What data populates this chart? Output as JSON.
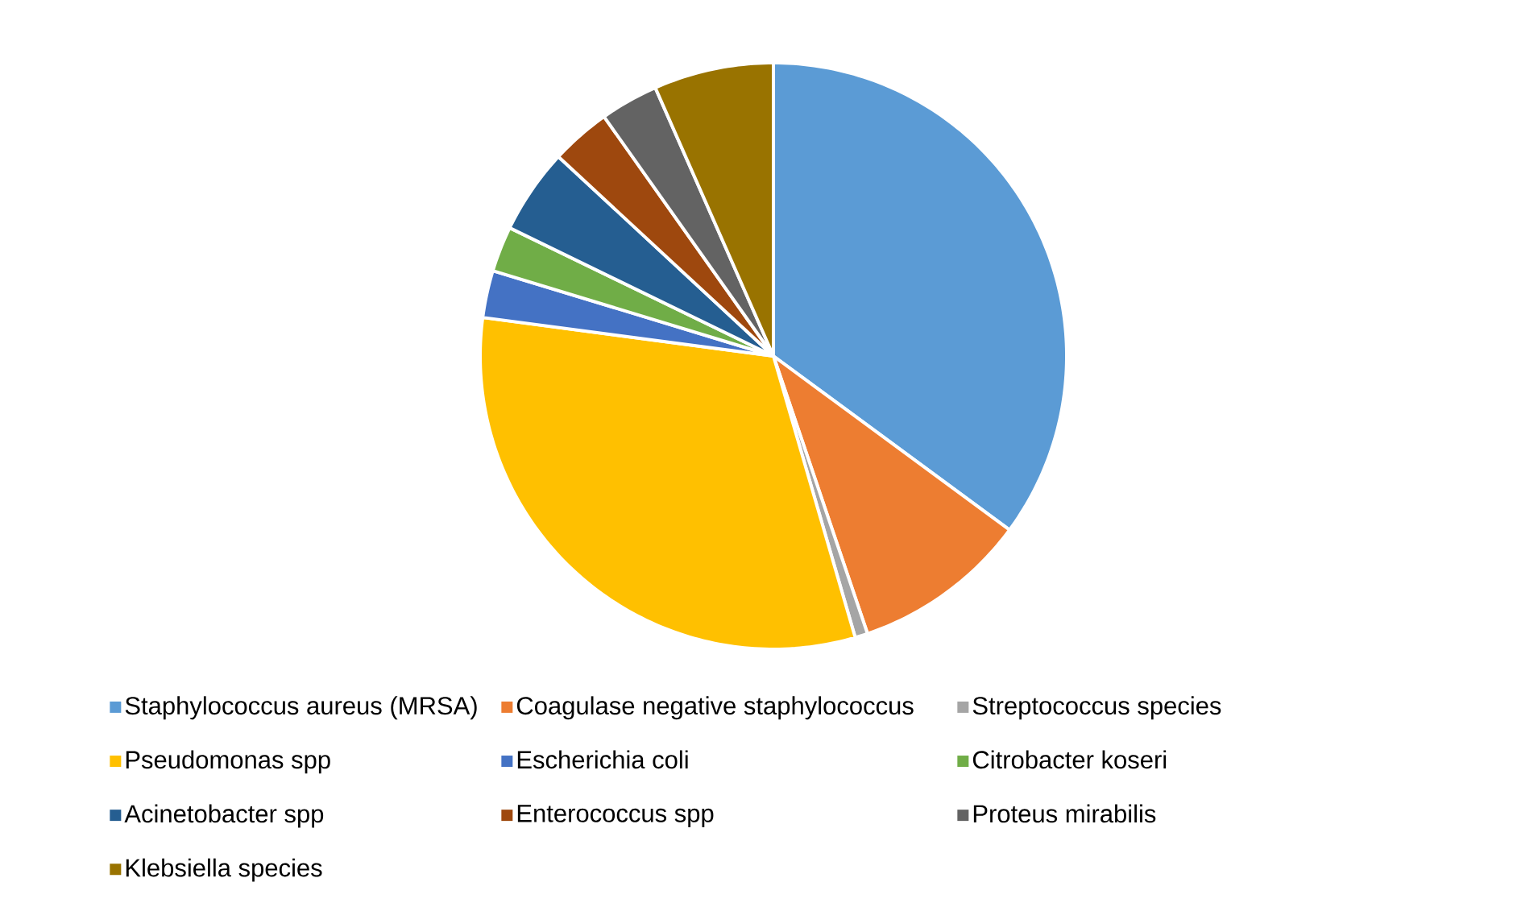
{
  "chart_data": {
    "type": "pie",
    "categories": [
      "Staphylococcus aureus (MRSA)",
      "Coagulase negative staphylococcus",
      "Streptococcus species",
      "Pseudomonas spp",
      "Escherichia coli",
      "Citrobacter koseri",
      "Acinetobacter spp",
      "Enterococcus spp",
      "Proteus mirabilis",
      "Klebsiella species"
    ],
    "values": [
      35.1,
      9.7,
      0.7,
      31.6,
      2.6,
      2.5,
      4.7,
      3.3,
      3.2,
      6.6
    ],
    "colors": [
      "#5b9bd5",
      "#ed7d31",
      "#a5a5a5",
      "#ffc000",
      "#4472c4",
      "#70ad47",
      "#255e91",
      "#9e480e",
      "#636363",
      "#997300"
    ],
    "legend": "bottom"
  }
}
